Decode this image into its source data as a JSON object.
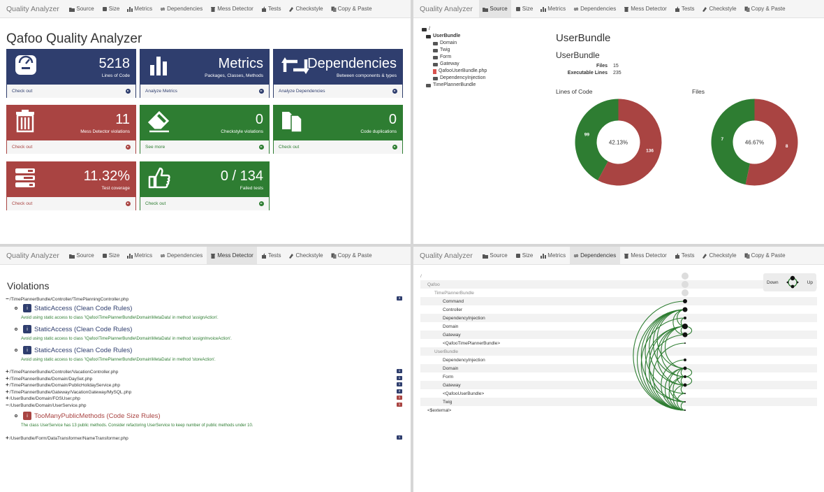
{
  "nav": {
    "brand": "Quality Analyzer",
    "items": [
      "Source",
      "Size",
      "Metrics",
      "Dependencies",
      "Mess Detector",
      "Tests",
      "Checkstyle",
      "Copy & Paste"
    ]
  },
  "dashboard": {
    "title": "Qafoo Quality Analyzer",
    "tiles": [
      {
        "big": "5218",
        "sub": "Lines of Code",
        "link": "Check out",
        "color": "blue",
        "icon": "gauge-icon"
      },
      {
        "big": "Metrics",
        "sub": "Packages, Classes, Methods",
        "link": "Analyze Metrics",
        "color": "blue",
        "icon": "bar-chart-icon"
      },
      {
        "big": "Dependencies",
        "sub": "Between components & types",
        "link": "Analyze Dependencies",
        "color": "blue",
        "icon": "retweet-icon"
      },
      {
        "big": "11",
        "sub": "Mess Detector violations",
        "link": "Check out",
        "color": "red",
        "icon": "trash-icon"
      },
      {
        "big": "0",
        "sub": "Checkstyle violations",
        "link": "See more",
        "color": "green",
        "icon": "eraser-icon"
      },
      {
        "big": "0",
        "sub": "Code duplications",
        "link": "Check out",
        "color": "green",
        "icon": "copy-icon"
      },
      {
        "big": "11.32%",
        "sub": "Test coverage",
        "link": "Check out",
        "color": "red",
        "icon": "tasks-icon"
      },
      {
        "big": "0 / 134",
        "sub": "Failed tests",
        "link": "Check out",
        "color": "green",
        "icon": "thumbs-up-icon"
      }
    ]
  },
  "source": {
    "tree": [
      {
        "label": "/",
        "depth": 0,
        "kind": "folder-open"
      },
      {
        "label": "UserBundle",
        "depth": 1,
        "kind": "folder-open",
        "bold": true
      },
      {
        "label": "Domain",
        "depth": 2,
        "kind": "folder"
      },
      {
        "label": "Twig",
        "depth": 2,
        "kind": "folder"
      },
      {
        "label": "Form",
        "depth": 2,
        "kind": "folder"
      },
      {
        "label": "Gateway",
        "depth": 2,
        "kind": "folder"
      },
      {
        "label": "QafooUserBundle.php",
        "depth": 2,
        "kind": "file"
      },
      {
        "label": "DependencyInjection",
        "depth": 2,
        "kind": "folder"
      },
      {
        "label": "TimePlannerBundle",
        "depth": 1,
        "kind": "folder"
      }
    ],
    "title": "UserBundle",
    "subtitle": "UserBundle",
    "stats": [
      {
        "k": "Files",
        "v": "15"
      },
      {
        "k": "Executable Lines",
        "v": "235"
      }
    ],
    "charts": [
      {
        "label": "Lines of Code",
        "center": "42.13%",
        "green": 99,
        "red": 136
      },
      {
        "label": "Files",
        "center": "46.67%",
        "green": 7,
        "red": 8
      }
    ]
  },
  "chart_data": [
    {
      "type": "pie",
      "title": "Lines of Code",
      "center_label": "42.13%",
      "values": [
        99,
        136
      ],
      "colors": [
        "#2e7d32",
        "#a94442"
      ]
    },
    {
      "type": "pie",
      "title": "Files",
      "center_label": "46.67%",
      "values": [
        7,
        8
      ],
      "colors": [
        "#2e7d32",
        "#a94442"
      ]
    }
  ],
  "violations": {
    "title": "Violations",
    "rows": [
      {
        "sign": "−",
        "path": "/TimePlannerBundle/Controller/TimePlanningController.php",
        "count": "3",
        "color": "blue"
      },
      {
        "sign": "+",
        "path": "/TimePlannerBundle/Controller/VacationController.php",
        "count": "1",
        "color": "blue"
      },
      {
        "sign": "+",
        "path": "/TimePlannerBundle/Domain/DaySet.php",
        "count": "1",
        "color": "blue"
      },
      {
        "sign": "+",
        "path": "/TimePlannerBundle/Domain/PublicHolidayService.php",
        "count": "1",
        "color": "blue"
      },
      {
        "sign": "+",
        "path": "/TimePlannerBundle/Gateway/VacationGateway/MySQL.php",
        "count": "2",
        "color": "blue"
      },
      {
        "sign": "+",
        "path": "/UserBundle/Domain/FOSUser.php",
        "count": "1",
        "color": "red"
      },
      {
        "sign": "−",
        "path": "/UserBundle/Domain/UserService.php",
        "count": "1",
        "color": "red"
      },
      {
        "sign": "+",
        "path": "/UserBundle/Form/DataTransformer/NameTransformer.php",
        "count": "1",
        "color": "blue"
      }
    ],
    "rules": [
      {
        "name": "StaticAccess (Clean Code Rules)",
        "desc": "Avoid using static access to class '\\Qafoo\\TimePlannerBundle\\Domain\\MetaData' in method 'assignAction'.",
        "color": "blue"
      },
      {
        "name": "StaticAccess (Clean Code Rules)",
        "desc": "Avoid using static access to class '\\Qafoo\\TimePlannerBundle\\Domain\\MetaData' in method 'assignInvoiceAction'.",
        "color": "blue"
      },
      {
        "name": "StaticAccess (Clean Code Rules)",
        "desc": "Avoid using static access to class '\\Qafoo\\TimePlannerBundle\\Domain\\MetaData' in method 'storeAction'.",
        "color": "blue"
      },
      {
        "name": "TooManyPublicMethods (Code Size Rules)",
        "desc": "The class UserService has 13 public methods. Consider refactoring UserService to keep number of public methods under 10.",
        "color": "red"
      }
    ]
  },
  "dependencies": {
    "toggle_down": "Down",
    "toggle_up": "Up",
    "rows": [
      {
        "label": "/",
        "indent": 0,
        "muted": true
      },
      {
        "label": "Qafoo",
        "indent": 1,
        "muted": true
      },
      {
        "label": "TimePlannerBundle",
        "indent": 2,
        "muted": true
      },
      {
        "label": "Command",
        "indent": 3
      },
      {
        "label": "Controller",
        "indent": 3
      },
      {
        "label": "DependencyInjection",
        "indent": 3
      },
      {
        "label": "Domain",
        "indent": 3
      },
      {
        "label": "Gateway",
        "indent": 3
      },
      {
        "label": "<QafooTimePlannerBundle>",
        "indent": 3
      },
      {
        "label": "UserBundle",
        "indent": 2,
        "muted": true
      },
      {
        "label": "DependencyInjection",
        "indent": 3
      },
      {
        "label": "Domain",
        "indent": 3
      },
      {
        "label": "Form",
        "indent": 3
      },
      {
        "label": "Gateway",
        "indent": 3
      },
      {
        "label": "<QafooUserBundle>",
        "indent": 3
      },
      {
        "label": "Twig",
        "indent": 3
      },
      {
        "label": "<$external>",
        "indent": 1
      }
    ]
  }
}
